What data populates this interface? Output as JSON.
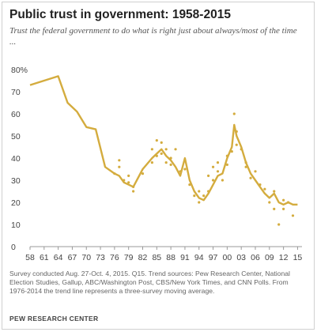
{
  "header": {
    "title": "Public trust in government: 1958-2015",
    "subtitle": "Trust the federal government to do what is right just about always/most of the time ..."
  },
  "notes": {
    "line1": "Survey conducted Aug. 27-Oct. 4, 2015. Q15. Trend sources: Pew Research Center, National",
    "line2": "Election Studies, Gallup, ABC/Washington Post, CBS/New York Times, and CNN Polls. From",
    "line3": "1976-2014 the trend line represents a three-survey moving average.",
    "source": "PEW RESEARCH CENTER"
  },
  "colors": {
    "line": "#d4ac3e",
    "dots": "#d4ac3e",
    "axis": "#999999"
  },
  "chart_data": {
    "type": "line",
    "title": "Public trust in government: 1958-2015",
    "xlim": [
      1958,
      2015.6
    ],
    "ylim": [
      0,
      80
    ],
    "x_ticks": [
      1958,
      1961,
      1964,
      1967,
      1970,
      1973,
      1976,
      1979,
      1982,
      1985,
      1988,
      1991,
      1994,
      1997,
      2000,
      2003,
      2006,
      2009,
      2012,
      2015
    ],
    "x_tick_labels": [
      "58",
      "61",
      "64",
      "67",
      "70",
      "73",
      "76",
      "79",
      "82",
      "85",
      "88",
      "91",
      "94",
      "97",
      "00",
      "03",
      "06",
      "09",
      "12",
      "15"
    ],
    "y_ticks": [
      0,
      10,
      20,
      30,
      40,
      50,
      60,
      70,
      80
    ],
    "y_tick_labels": [
      "0",
      "10",
      "20",
      "30",
      "40",
      "50",
      "60",
      "70",
      "80%"
    ],
    "grid": false,
    "series": [
      {
        "type": "line",
        "x": [
          1958,
          1964,
          1966,
          1968,
          1970,
          1972,
          1974,
          1976,
          1977,
          1978,
          1979,
          1980,
          1982,
          1984,
          1985,
          1986,
          1987,
          1988,
          1989,
          1990,
          1991,
          1992,
          1993,
          1994,
          1995,
          1996,
          1997,
          1998,
          1999,
          2000,
          2001,
          2001.5,
          2002,
          2003,
          2004,
          2005,
          2006,
          2007,
          2008,
          2009,
          2010,
          2011,
          2012,
          2013,
          2014,
          2015
        ],
        "y": [
          73,
          77,
          65,
          61,
          54,
          53,
          36,
          33,
          32,
          29,
          28,
          27,
          35,
          40,
          42,
          44,
          41,
          39,
          36,
          32,
          40,
          30,
          25,
          22,
          21,
          24,
          28,
          32,
          33,
          40,
          45,
          55,
          50,
          45,
          38,
          33,
          30,
          27,
          24,
          22,
          24,
          20,
          19,
          20,
          19,
          19
        ]
      },
      {
        "type": "scatter",
        "x": [
          1976,
          1977,
          1977,
          1978,
          1979,
          1979,
          1980,
          1980,
          1982,
          1984,
          1984,
          1985,
          1985,
          1986,
          1986,
          1987,
          1987,
          1988,
          1988,
          1989,
          1990,
          1991,
          1991,
          1992,
          1993,
          1994,
          1994,
          1995,
          1996,
          1996,
          1997,
          1997,
          1998,
          1998,
          1999,
          2000,
          2000,
          2001,
          2001.5,
          2002,
          2002,
          2003,
          2004,
          2004,
          2005,
          2006,
          2007,
          2008,
          2009,
          2010,
          2010,
          2011,
          2012,
          2012,
          2013,
          2014
        ],
        "y": [
          33,
          36,
          39,
          30,
          32,
          29,
          25,
          27,
          33,
          38,
          44,
          41,
          48,
          42,
          47,
          44,
          38,
          40,
          37,
          44,
          34,
          35,
          39,
          28,
          23,
          20,
          25,
          23,
          25,
          32,
          30,
          36,
          34,
          38,
          30,
          41,
          37,
          43,
          60,
          52,
          46,
          44,
          38,
          36,
          31,
          34,
          28,
          26,
          20,
          25,
          17,
          10,
          21,
          17,
          20,
          14
        ]
      }
    ]
  }
}
